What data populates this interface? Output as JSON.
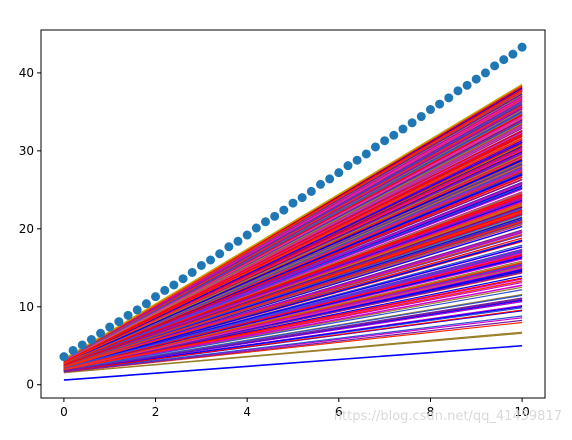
{
  "chart_data": {
    "type": "line",
    "title": "",
    "xlabel": "",
    "ylabel": "",
    "xlim": [
      -0.5,
      10.5
    ],
    "ylim": [
      -1.7,
      45.5
    ],
    "xticks": [
      0,
      2,
      4,
      6,
      8,
      10
    ],
    "yticks": [
      0,
      10,
      20,
      30,
      40
    ],
    "grid": false,
    "legend": "none",
    "scatter": {
      "color": "#1f77b4",
      "x": [
        0.0,
        0.2,
        0.4,
        0.6,
        0.8,
        1.0,
        1.2,
        1.4,
        1.6,
        1.8,
        2.0,
        2.2,
        2.4,
        2.6,
        2.8,
        3.0,
        3.2,
        3.4,
        3.6,
        3.8,
        4.0,
        4.2,
        4.4,
        4.6,
        4.8,
        5.0,
        5.2,
        5.4,
        5.6,
        5.8,
        6.0,
        6.2,
        6.4,
        6.6,
        6.8,
        7.0,
        7.2,
        7.4,
        7.6,
        7.8,
        8.0,
        8.2,
        8.4,
        8.6,
        8.8,
        9.0,
        9.2,
        9.4,
        9.6,
        9.8,
        10.0
      ],
      "y": [
        3.6,
        4.4,
        5.1,
        5.8,
        6.6,
        7.4,
        8.1,
        8.9,
        9.6,
        10.4,
        11.3,
        12.1,
        12.8,
        13.6,
        14.4,
        15.3,
        16.0,
        16.8,
        17.7,
        18.4,
        19.2,
        20.1,
        20.9,
        21.6,
        22.4,
        23.3,
        24.0,
        24.8,
        25.7,
        26.4,
        27.2,
        28.1,
        28.8,
        29.6,
        30.5,
        31.3,
        32.0,
        32.8,
        33.6,
        34.4,
        35.3,
        36.0,
        36.8,
        37.7,
        38.4,
        39.2,
        40.0,
        40.9,
        41.7,
        42.4,
        43.3
      ]
    },
    "lines": {
      "x_start": 0,
      "x_end": 10,
      "lowest_line": {
        "color": "#0000ff",
        "y_start": 0.6,
        "y_end": 5.0
      },
      "highest_line": {
        "color": "#c8a000",
        "y_start": 3.3,
        "y_end": 38.5
      },
      "palette": [
        "#ff0000",
        "#0000ff",
        "#cc00cc",
        "#9a7f2b",
        "#7a1fa0",
        "#e0309a",
        "#3050d0",
        "#ff2a00"
      ]
    },
    "watermark": "https://blog.csdn.net/qq_41459817"
  }
}
